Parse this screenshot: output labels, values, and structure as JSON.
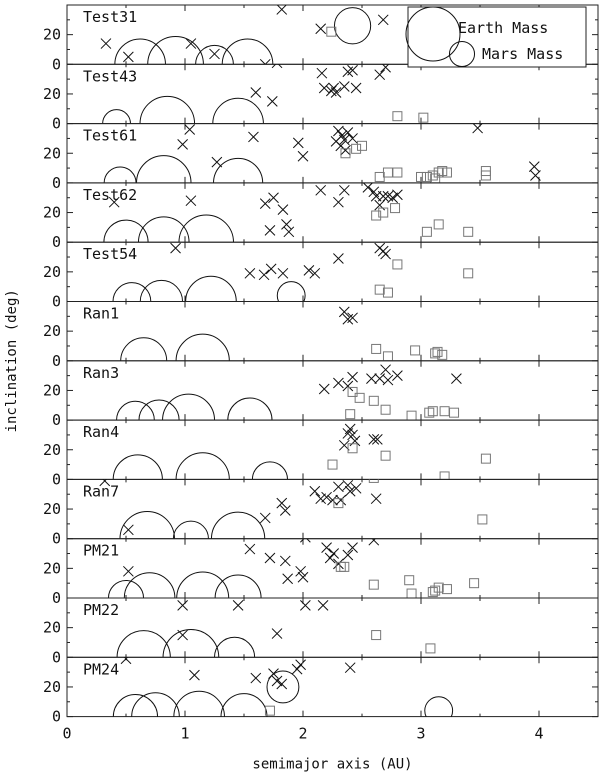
{
  "chart_data": {
    "type": "scatter",
    "xlabel": "semimajor axis (AU)",
    "ylabel": "inclination (deg)",
    "xlim": [
      0,
      4.5
    ],
    "ylim": [
      0,
      40
    ],
    "xticks": [
      "0",
      "1",
      "2",
      "3",
      "4"
    ],
    "yticks": [
      "0",
      "20"
    ],
    "legend": {
      "position": "top-right",
      "entries": [
        {
          "label": "Earth Mass",
          "mass": 1.0
        },
        {
          "label": "Mars Mass",
          "mass": 0.1
        }
      ]
    },
    "panels": [
      {
        "name": "Test31",
        "planets": [
          [
            0.62,
            0,
            0.6
          ],
          [
            0.92,
            0,
            0.8
          ],
          [
            1.25,
            0,
            0.25
          ],
          [
            1.53,
            0,
            0.6
          ],
          [
            2.42,
            26,
            0.22
          ]
        ],
        "crosses": [
          [
            0.33,
            14
          ],
          [
            0.52,
            5
          ],
          [
            1.05,
            14
          ],
          [
            1.25,
            7
          ],
          [
            1.68,
            0
          ],
          [
            1.82,
            37
          ],
          [
            2.15,
            24
          ],
          [
            2.68,
            30
          ]
        ],
        "squares": [
          [
            2.24,
            22
          ]
        ]
      },
      {
        "name": "Test43",
        "planets": [
          [
            0.42,
            0,
            0.1
          ],
          [
            0.85,
            0,
            0.75
          ],
          [
            1.45,
            0,
            0.6
          ]
        ],
        "crosses": [
          [
            1.6,
            21
          ],
          [
            1.74,
            15
          ],
          [
            1.78,
            41
          ],
          [
            2.16,
            34
          ],
          [
            2.18,
            24
          ],
          [
            2.24,
            22
          ],
          [
            2.26,
            24
          ],
          [
            2.28,
            21
          ],
          [
            2.35,
            25
          ],
          [
            2.38,
            35
          ],
          [
            2.42,
            36
          ],
          [
            2.45,
            24
          ],
          [
            2.65,
            33
          ],
          [
            2.7,
            38
          ]
        ],
        "squares": [
          [
            2.8,
            5
          ],
          [
            3.02,
            4
          ]
        ]
      },
      {
        "name": "Test61",
        "planets": [
          [
            0.45,
            0,
            0.15
          ],
          [
            0.82,
            0,
            0.75
          ],
          [
            1.45,
            0,
            0.55
          ]
        ],
        "crosses": [
          [
            0.98,
            26
          ],
          [
            1.04,
            36
          ],
          [
            1.27,
            14
          ],
          [
            1.58,
            31
          ],
          [
            1.96,
            27
          ],
          [
            2.0,
            18
          ],
          [
            2.28,
            28
          ],
          [
            2.3,
            35
          ],
          [
            2.32,
            25
          ],
          [
            2.33,
            32
          ],
          [
            2.35,
            29
          ],
          [
            2.36,
            22
          ],
          [
            2.38,
            34
          ],
          [
            2.42,
            30
          ],
          [
            3.48,
            37
          ],
          [
            3.96,
            11
          ],
          [
            3.97,
            5
          ]
        ],
        "squares": [
          [
            2.36,
            20
          ],
          [
            2.45,
            23
          ],
          [
            2.5,
            25
          ],
          [
            2.65,
            4
          ],
          [
            2.72,
            7
          ],
          [
            2.8,
            7
          ],
          [
            3.0,
            4
          ],
          [
            3.05,
            4
          ],
          [
            3.1,
            5
          ],
          [
            3.12,
            3
          ],
          [
            3.15,
            7
          ],
          [
            3.18,
            8
          ],
          [
            3.22,
            7
          ],
          [
            3.55,
            5
          ],
          [
            3.55,
            8
          ]
        ]
      },
      {
        "name": "Test62",
        "planets": [
          [
            0.5,
            0,
            0.4
          ],
          [
            0.82,
            0,
            0.6
          ],
          [
            1.18,
            0,
            0.75
          ]
        ],
        "crosses": [
          [
            0.4,
            27
          ],
          [
            1.05,
            28
          ],
          [
            1.68,
            26
          ],
          [
            1.72,
            8
          ],
          [
            1.75,
            30
          ],
          [
            1.83,
            22
          ],
          [
            1.86,
            12
          ],
          [
            1.88,
            7
          ],
          [
            2.15,
            35
          ],
          [
            2.3,
            27
          ],
          [
            2.35,
            35
          ],
          [
            2.55,
            37
          ],
          [
            2.6,
            34
          ],
          [
            2.62,
            31
          ],
          [
            2.65,
            25
          ],
          [
            2.68,
            31
          ],
          [
            2.72,
            31
          ],
          [
            2.76,
            30
          ],
          [
            2.8,
            32
          ]
        ],
        "squares": [
          [
            2.62,
            18
          ],
          [
            2.68,
            20
          ],
          [
            2.78,
            23
          ],
          [
            3.05,
            7
          ],
          [
            3.15,
            12
          ],
          [
            3.4,
            7
          ]
        ]
      },
      {
        "name": "Test54",
        "planets": [
          [
            0.55,
            0,
            0.25
          ],
          [
            0.8,
            0,
            0.35
          ],
          [
            1.22,
            0,
            0.6
          ],
          [
            1.9,
            4,
            0.1
          ]
        ],
        "crosses": [
          [
            0.92,
            36
          ],
          [
            1.55,
            19
          ],
          [
            1.67,
            18
          ],
          [
            1.73,
            22
          ],
          [
            1.83,
            19
          ],
          [
            2.05,
            21
          ],
          [
            2.1,
            19
          ],
          [
            2.3,
            29
          ],
          [
            2.65,
            36
          ],
          [
            2.68,
            34
          ],
          [
            2.7,
            32
          ]
        ],
        "squares": [
          [
            2.65,
            8
          ],
          [
            2.72,
            6
          ],
          [
            2.8,
            25
          ],
          [
            3.4,
            19
          ]
        ]
      },
      {
        "name": "Ran1",
        "planets": [
          [
            0.65,
            0,
            0.45
          ],
          [
            1.15,
            0,
            0.7
          ]
        ],
        "crosses": [
          [
            2.35,
            33
          ],
          [
            2.38,
            28
          ],
          [
            2.42,
            29
          ]
        ],
        "squares": [
          [
            2.62,
            8
          ],
          [
            2.72,
            3
          ],
          [
            2.95,
            7
          ],
          [
            3.12,
            5
          ],
          [
            3.14,
            6
          ],
          [
            3.18,
            4
          ]
        ]
      },
      {
        "name": "Ran3",
        "planets": [
          [
            0.58,
            0,
            0.25
          ],
          [
            0.78,
            0,
            0.3
          ],
          [
            1.03,
            0,
            0.65
          ],
          [
            1.55,
            0,
            0.4
          ]
        ],
        "crosses": [
          [
            2.18,
            21
          ],
          [
            2.3,
            25
          ],
          [
            2.38,
            23
          ],
          [
            2.42,
            29
          ],
          [
            2.58,
            28
          ],
          [
            2.65,
            28
          ],
          [
            2.7,
            34
          ],
          [
            2.72,
            27
          ],
          [
            2.8,
            30
          ],
          [
            3.3,
            28
          ]
        ],
        "squares": [
          [
            2.4,
            4
          ],
          [
            2.42,
            19
          ],
          [
            2.48,
            15
          ],
          [
            2.6,
            13
          ],
          [
            2.7,
            7
          ],
          [
            3.07,
            5
          ],
          [
            3.1,
            6
          ],
          [
            3.2,
            6
          ],
          [
            3.28,
            5
          ],
          [
            2.92,
            3
          ]
        ]
      },
      {
        "name": "Ran4",
        "planets": [
          [
            0.6,
            0,
            0.55
          ],
          [
            1.15,
            0,
            0.7
          ],
          [
            1.72,
            0,
            0.2
          ]
        ],
        "crosses": [
          [
            2.35,
            23
          ],
          [
            2.38,
            31
          ],
          [
            2.4,
            34
          ],
          [
            2.42,
            30
          ],
          [
            2.44,
            26
          ],
          [
            2.6,
            27
          ],
          [
            2.63,
            27
          ]
        ],
        "squares": [
          [
            2.25,
            10
          ],
          [
            2.42,
            21
          ],
          [
            2.7,
            16
          ],
          [
            3.2,
            2
          ],
          [
            3.55,
            14
          ]
        ]
      },
      {
        "name": "Ran7",
        "planets": [
          [
            0.68,
            0,
            0.75
          ],
          [
            1.05,
            0,
            0.2
          ],
          [
            1.45,
            0,
            0.7
          ]
        ],
        "crosses": [
          [
            0.32,
            39
          ],
          [
            0.52,
            6
          ],
          [
            1.68,
            14
          ],
          [
            1.82,
            24
          ],
          [
            1.85,
            19
          ],
          [
            2.1,
            32
          ],
          [
            2.15,
            27
          ],
          [
            2.2,
            28
          ],
          [
            2.25,
            26
          ],
          [
            2.3,
            35
          ],
          [
            2.32,
            26
          ],
          [
            2.38,
            36
          ],
          [
            2.4,
            32
          ],
          [
            2.45,
            34
          ],
          [
            2.62,
            27
          ]
        ],
        "squares": [
          [
            2.3,
            24
          ],
          [
            2.6,
            41
          ],
          [
            3.52,
            13
          ]
        ]
      },
      {
        "name": "PM21",
        "planets": [
          [
            0.5,
            0,
            0.2
          ],
          [
            0.7,
            0,
            0.6
          ],
          [
            1.15,
            0,
            0.65
          ],
          [
            1.45,
            0,
            0.45
          ]
        ],
        "crosses": [
          [
            0.52,
            18
          ],
          [
            1.55,
            33
          ],
          [
            1.72,
            27
          ],
          [
            1.85,
            25
          ],
          [
            1.87,
            13
          ],
          [
            1.98,
            18
          ],
          [
            2.0,
            14
          ],
          [
            2.02,
            41
          ],
          [
            2.2,
            34
          ],
          [
            2.23,
            27
          ],
          [
            2.26,
            30
          ],
          [
            2.3,
            23
          ],
          [
            2.38,
            29
          ],
          [
            2.42,
            34
          ],
          [
            2.6,
            39
          ]
        ],
        "squares": [
          [
            2.32,
            21
          ],
          [
            2.35,
            21
          ],
          [
            2.6,
            9
          ],
          [
            2.9,
            12
          ],
          [
            2.92,
            3
          ],
          [
            3.1,
            4
          ],
          [
            3.12,
            5
          ],
          [
            3.15,
            7
          ],
          [
            3.22,
            6
          ],
          [
            3.45,
            10
          ]
        ]
      },
      {
        "name": "PM22",
        "planets": [
          [
            0.65,
            0,
            0.7
          ],
          [
            1.05,
            0,
            0.8
          ],
          [
            1.42,
            0,
            0.3
          ]
        ],
        "crosses": [
          [
            0.98,
            15
          ],
          [
            0.98,
            35
          ],
          [
            1.45,
            35
          ],
          [
            1.78,
            16
          ],
          [
            2.02,
            35
          ],
          [
            2.17,
            35
          ]
        ],
        "squares": [
          [
            2.62,
            15
          ],
          [
            3.08,
            6
          ]
        ]
      },
      {
        "name": "PM24",
        "planets": [
          [
            0.58,
            0,
            0.4
          ],
          [
            0.75,
            0,
            0.5
          ],
          [
            1.12,
            0,
            0.6
          ],
          [
            1.5,
            0,
            0.45
          ],
          [
            1.83,
            20,
            0.15
          ],
          [
            3.15,
            4,
            0.1
          ]
        ],
        "crosses": [
          [
            0.5,
            39
          ],
          [
            1.08,
            28
          ],
          [
            1.6,
            26
          ],
          [
            1.75,
            29
          ],
          [
            1.78,
            24
          ],
          [
            1.82,
            22
          ],
          [
            1.95,
            32
          ],
          [
            1.98,
            35
          ],
          [
            2.4,
            33
          ]
        ],
        "squares": [
          [
            1.72,
            4
          ]
        ]
      }
    ]
  }
}
